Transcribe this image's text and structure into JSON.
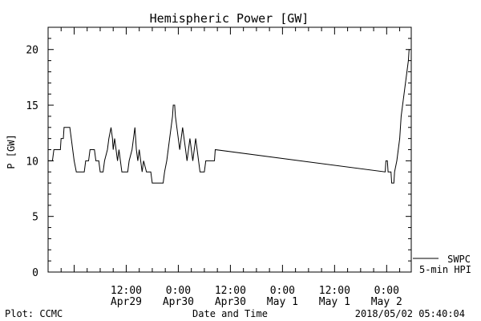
{
  "chart_data": {
    "type": "line",
    "title": "Hemispheric Power [GW]",
    "xlabel": "Date and Time",
    "ylabel": "P [GW]",
    "ylim": [
      0,
      22
    ],
    "xlim": [
      "2018-04-28T18:00",
      "2018-05-02T05:40"
    ],
    "yticks": [
      0,
      5,
      10,
      15,
      20
    ],
    "xtick_labels": [
      {
        "time": "2018-04-29T12:00",
        "line1": "12:00",
        "line2": "Apr29"
      },
      {
        "time": "2018-04-30T00:00",
        "line1": "0:00",
        "line2": "Apr30"
      },
      {
        "time": "2018-04-30T12:00",
        "line1": "12:00",
        "line2": "Apr30"
      },
      {
        "time": "2018-05-01T00:00",
        "line1": "0:00",
        "line2": "May 1"
      },
      {
        "time": "2018-05-01T12:00",
        "line1": "12:00",
        "line2": "May 1"
      },
      {
        "time": "2018-05-02T00:00",
        "line1": "0:00",
        "line2": "May 2"
      }
    ],
    "grid": false,
    "series": [
      {
        "name": "SWPC",
        "note": "5-min HPI",
        "color": "#000000",
        "points": [
          [
            "2018-04-28T18:00",
            10
          ],
          [
            "2018-04-28T19:00",
            10
          ],
          [
            "2018-04-28T19:20",
            11
          ],
          [
            "2018-04-28T20:50",
            11
          ],
          [
            "2018-04-28T21:00",
            12
          ],
          [
            "2018-04-28T21:30",
            12
          ],
          [
            "2018-04-28T21:40",
            13
          ],
          [
            "2018-04-28T23:00",
            13
          ],
          [
            "2018-04-28T23:20",
            12
          ],
          [
            "2018-04-28T23:40",
            11
          ],
          [
            "2018-04-29T00:00",
            10
          ],
          [
            "2018-04-29T00:30",
            9
          ],
          [
            "2018-04-29T02:20",
            9
          ],
          [
            "2018-04-29T02:40",
            10
          ],
          [
            "2018-04-29T03:20",
            10
          ],
          [
            "2018-04-29T03:40",
            11
          ],
          [
            "2018-04-29T04:40",
            11
          ],
          [
            "2018-04-29T05:00",
            10
          ],
          [
            "2018-04-29T05:40",
            10
          ],
          [
            "2018-04-29T06:00",
            9
          ],
          [
            "2018-04-29T06:40",
            9
          ],
          [
            "2018-04-29T07:00",
            10
          ],
          [
            "2018-04-29T07:40",
            11
          ],
          [
            "2018-04-29T08:00",
            12
          ],
          [
            "2018-04-29T08:30",
            13
          ],
          [
            "2018-04-29T08:50",
            12
          ],
          [
            "2018-04-29T09:00",
            11
          ],
          [
            "2018-04-29T09:20",
            12
          ],
          [
            "2018-04-29T09:40",
            11
          ],
          [
            "2018-04-29T10:00",
            10
          ],
          [
            "2018-04-29T10:20",
            11
          ],
          [
            "2018-04-29T10:40",
            10
          ],
          [
            "2018-04-29T11:00",
            9
          ],
          [
            "2018-04-29T12:20",
            9
          ],
          [
            "2018-04-29T12:40",
            10
          ],
          [
            "2018-04-29T13:20",
            11
          ],
          [
            "2018-04-29T13:40",
            12
          ],
          [
            "2018-04-29T14:00",
            13
          ],
          [
            "2018-04-29T14:20",
            11
          ],
          [
            "2018-04-29T14:40",
            10
          ],
          [
            "2018-04-29T15:00",
            11
          ],
          [
            "2018-04-29T15:20",
            10
          ],
          [
            "2018-04-29T15:40",
            9
          ],
          [
            "2018-04-29T16:00",
            10
          ],
          [
            "2018-04-29T16:40",
            9
          ],
          [
            "2018-04-29T17:40",
            9
          ],
          [
            "2018-04-29T18:00",
            8
          ],
          [
            "2018-04-29T20:30",
            8
          ],
          [
            "2018-04-29T20:50",
            9
          ],
          [
            "2018-04-29T21:20",
            10
          ],
          [
            "2018-04-29T21:40",
            11
          ],
          [
            "2018-04-29T22:00",
            12
          ],
          [
            "2018-04-29T22:20",
            13
          ],
          [
            "2018-04-29T22:40",
            14
          ],
          [
            "2018-04-29T22:50",
            15
          ],
          [
            "2018-04-29T23:10",
            15
          ],
          [
            "2018-04-29T23:20",
            14
          ],
          [
            "2018-04-29T23:40",
            13
          ],
          [
            "2018-04-30T00:00",
            12
          ],
          [
            "2018-04-30T00:20",
            11
          ],
          [
            "2018-04-30T00:40",
            12
          ],
          [
            "2018-04-30T01:00",
            13
          ],
          [
            "2018-04-30T01:20",
            12
          ],
          [
            "2018-04-30T01:40",
            11
          ],
          [
            "2018-04-30T02:00",
            10
          ],
          [
            "2018-04-30T02:20",
            11
          ],
          [
            "2018-04-30T02:40",
            12
          ],
          [
            "2018-04-30T03:00",
            11
          ],
          [
            "2018-04-30T03:20",
            10
          ],
          [
            "2018-04-30T03:40",
            11
          ],
          [
            "2018-04-30T04:00",
            12
          ],
          [
            "2018-04-30T04:20",
            11
          ],
          [
            "2018-04-30T04:40",
            10
          ],
          [
            "2018-04-30T05:00",
            9
          ],
          [
            "2018-04-30T06:00",
            9
          ],
          [
            "2018-04-30T06:20",
            10
          ],
          [
            "2018-04-30T08:20",
            10
          ],
          [
            "2018-04-30T08:30",
            11
          ],
          [
            "2018-05-01T23:40",
            9
          ],
          [
            "2018-05-01T23:50",
            10
          ],
          [
            "2018-05-02T00:10",
            10
          ],
          [
            "2018-05-02T00:20",
            9
          ],
          [
            "2018-05-02T01:00",
            9
          ],
          [
            "2018-05-02T01:10",
            8
          ],
          [
            "2018-05-02T01:40",
            8
          ],
          [
            "2018-05-02T01:50",
            9
          ],
          [
            "2018-05-02T02:20",
            10
          ],
          [
            "2018-05-02T02:40",
            11
          ],
          [
            "2018-05-02T03:00",
            12
          ],
          [
            "2018-05-02T03:20",
            14
          ],
          [
            "2018-05-02T03:40",
            15
          ],
          [
            "2018-05-02T04:00",
            16
          ],
          [
            "2018-05-02T04:20",
            17
          ],
          [
            "2018-05-02T04:40",
            18
          ],
          [
            "2018-05-02T05:00",
            19
          ],
          [
            "2018-05-02T05:10",
            20
          ],
          [
            "2018-05-02T05:20",
            20
          ]
        ]
      }
    ]
  },
  "footer": {
    "left": "Plot: CCMC",
    "right": "2018/05/02 05:40:04"
  }
}
